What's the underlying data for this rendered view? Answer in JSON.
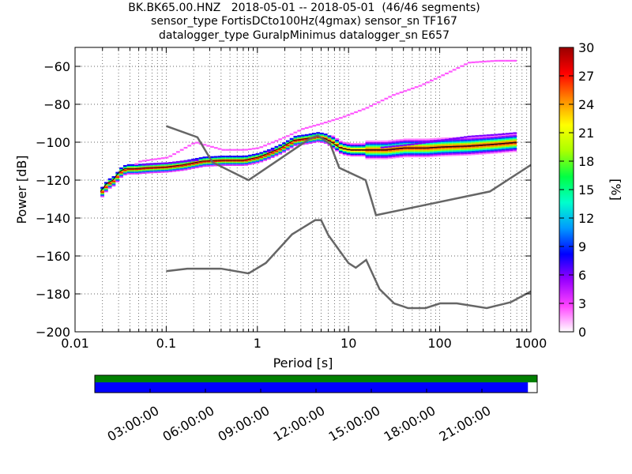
{
  "title_lines": [
    "BK.BK65.00.HNZ   2018-05-01 -- 2018-05-01  (46/46 segments)",
    "sensor_type FortisDCto100Hz(4gmax) sensor_sn TF167",
    "datalogger_type GuralpMinimus datalogger_sn E657"
  ],
  "chart_data": {
    "type": "heatmap",
    "xlabel": "Period [s]",
    "ylabel": "Power [dB]",
    "xscale": "log",
    "xlim": [
      0.01,
      1000
    ],
    "ylim": [
      -200,
      -50
    ],
    "x_ticks": [
      0.01,
      0.1,
      1,
      10,
      100,
      1000
    ],
    "x_tick_labels": [
      "0.01",
      "0.1",
      "1",
      "10",
      "100",
      "1000"
    ],
    "y_ticks": [
      -200,
      -180,
      -160,
      -140,
      -120,
      -100,
      -80,
      -60
    ],
    "y_tick_labels": [
      "−200",
      "−180",
      "−160",
      "−140",
      "−120",
      "−100",
      "−80",
      "−60"
    ],
    "grid": "dotted",
    "colorbar": {
      "label": "[%]",
      "min": 0,
      "max": 30,
      "ticks": [
        0,
        3,
        6,
        9,
        12,
        15,
        18,
        21,
        24,
        27,
        30
      ],
      "colors": [
        "#ffffff",
        "#ff44ff",
        "#9900ff",
        "#0000ff",
        "#0099ff",
        "#00ffcc",
        "#00ff44",
        "#aaff00",
        "#ffff00",
        "#ff8800",
        "#ff0000",
        "#990000"
      ]
    },
    "mode_curve": {
      "period": [
        0.019,
        0.022,
        0.026,
        0.03,
        0.035,
        0.045,
        0.06,
        0.1,
        0.15,
        0.25,
        0.4,
        0.7,
        1.0,
        1.3,
        1.8,
        2.5,
        3.5,
        4.5,
        5.5,
        6.5,
        8,
        10,
        15,
        25,
        40,
        70,
        100,
        200,
        400,
        700
      ],
      "power": [
        -126,
        -122,
        -120,
        -116,
        -114,
        -114,
        -113.5,
        -113,
        -112,
        -110,
        -109.5,
        -109.5,
        -108,
        -106,
        -103,
        -99,
        -98,
        -97,
        -98,
        -100,
        -103,
        -104,
        -104,
        -104,
        -103,
        -103,
        -102.5,
        -102,
        -101,
        -100
      ]
    },
    "upper_band": {
      "period": [
        0.02,
        0.03,
        0.05,
        0.1,
        0.2,
        0.4,
        0.7,
        1.0,
        2.0,
        3.0,
        5.0,
        8.0,
        15,
        30,
        60,
        100,
        200,
        400,
        700
      ],
      "power": [
        -124,
        -117,
        -110,
        -108,
        -100,
        -104,
        -104,
        -103,
        -97,
        -93,
        -90,
        -87,
        -82,
        -75,
        -70,
        -65,
        -58,
        -57,
        -57
      ]
    },
    "secondary_band": {
      "period": [
        0.05,
        0.1,
        0.2,
        0.4,
        0.7,
        1.0,
        2.0,
        3.0,
        4.0,
        5.0,
        7.0,
        10,
        20,
        50,
        100,
        200,
        400,
        700
      ],
      "power": [
        -112,
        -111,
        -109.5,
        -109.5,
        -108.5,
        -107,
        -101,
        -99,
        -98,
        -98,
        -101,
        -104,
        -103,
        -101,
        -99,
        -97,
        -96,
        -95
      ]
    },
    "nhnm": {
      "period": [
        0.1,
        0.22,
        0.32,
        0.8,
        3.8,
        4.6,
        6.3,
        7.9,
        15.4,
        20,
        354.8,
        1000
      ],
      "power": [
        -91.5,
        -97.4,
        -110.5,
        -120,
        -98,
        -96.5,
        -101,
        -113.5,
        -120,
        -138.5,
        -126,
        -112
      ]
    },
    "nlnm": {
      "period": [
        0.1,
        0.17,
        0.4,
        0.8,
        1.24,
        2.4,
        4.3,
        5.0,
        6.0,
        10.0,
        12.0,
        15.6,
        21.9,
        31.6,
        45,
        70,
        101,
        154,
        328,
        600,
        1000
      ],
      "power": [
        -168,
        -166.7,
        -166.7,
        -169.2,
        -163.7,
        -148.6,
        -141.1,
        -141.1,
        -149,
        -163.8,
        -166.2,
        -162.1,
        -177.5,
        -185,
        -187.5,
        -187.5,
        -185,
        -185,
        -187.5,
        -184.4,
        -178.7
      ]
    },
    "timeline": {
      "tick_labels": [
        "03:00:00",
        "06:00:00",
        "09:00:00",
        "12:00:00",
        "15:00:00",
        "18:00:00",
        "21:00:00"
      ],
      "tick_hours": [
        3,
        6,
        9,
        12,
        15,
        18,
        21
      ],
      "span_hours": 24,
      "data_available_fraction": 1.0,
      "psd_coverage_fraction": 0.979,
      "data_color": "#008000",
      "psd_color": "#0000ff"
    }
  }
}
